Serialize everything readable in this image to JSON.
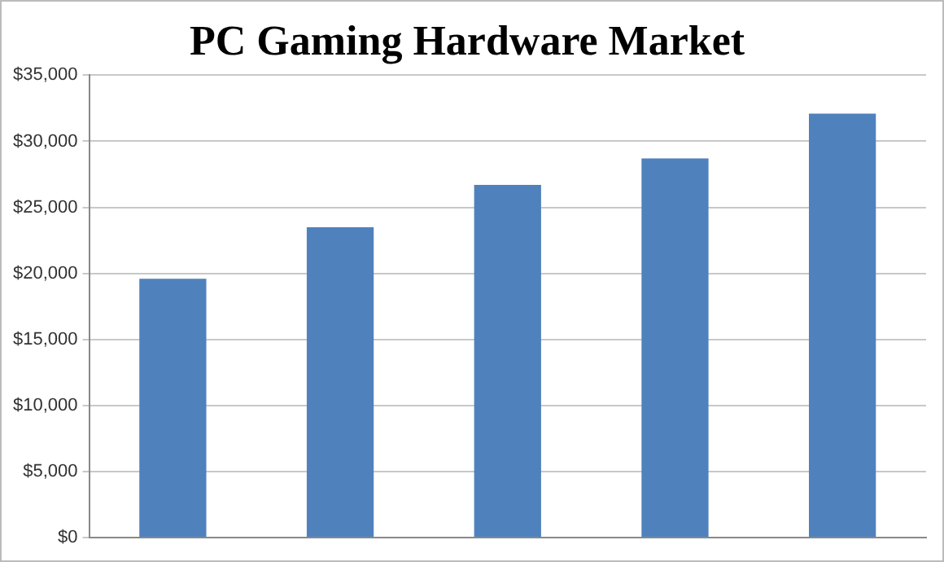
{
  "chart_data": {
    "type": "bar",
    "title": "PC Gaming Hardware Market",
    "categories": [
      null,
      null,
      null,
      null,
      null
    ],
    "values": [
      19600,
      23500,
      26700,
      28700,
      32100
    ],
    "color": "#4f81bd",
    "ylim": [
      0,
      35000
    ],
    "yticks": [
      {
        "value": 0,
        "label": "$0"
      },
      {
        "value": 5000,
        "label": "$5,000"
      },
      {
        "value": 10000,
        "label": "$10,000"
      },
      {
        "value": 15000,
        "label": "$15,000"
      },
      {
        "value": 20000,
        "label": "$20,000"
      },
      {
        "value": 25000,
        "label": "$25,000"
      },
      {
        "value": 30000,
        "label": "$30,000"
      },
      {
        "value": 35000,
        "label": "$35,000"
      }
    ],
    "grid": "y",
    "tick_labels": "y"
  }
}
